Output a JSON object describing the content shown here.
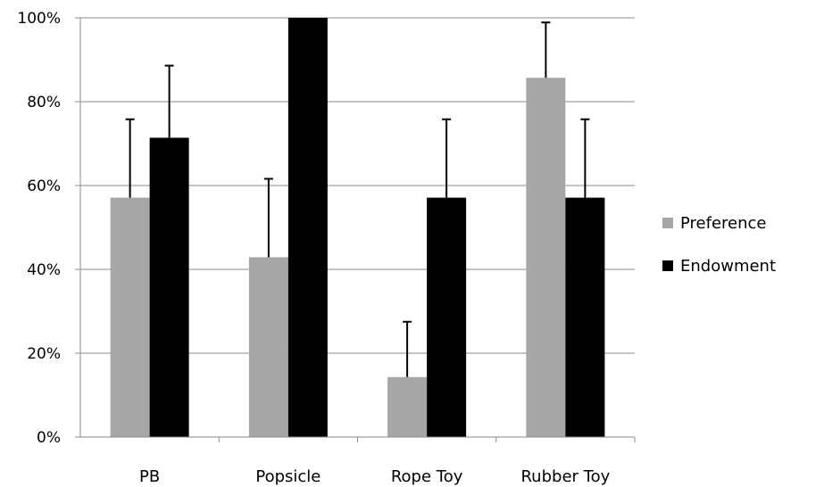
{
  "chart_data": {
    "type": "bar",
    "categories": [
      "PB",
      "Popsicle",
      "Rope Toy",
      "Rubber Toy"
    ],
    "series": [
      {
        "name": "Preference",
        "color": "#a6a6a6",
        "values": [
          57.1,
          42.9,
          14.3,
          85.7
        ],
        "error_upper": [
          18.7,
          18.7,
          13.2,
          13.2
        ]
      },
      {
        "name": "Endowment",
        "color": "#000000",
        "values": [
          71.4,
          100,
          57.1,
          57.1
        ],
        "error_upper": [
          17.2,
          0,
          18.7,
          18.7
        ]
      }
    ],
    "ylim": [
      0,
      100
    ],
    "yticks": [
      0,
      20,
      40,
      60,
      80,
      100
    ],
    "ytick_labels": [
      "0%",
      "20%",
      "40%",
      "60%",
      "80%",
      "100%"
    ],
    "title": "",
    "xlabel": "",
    "ylabel": "",
    "grid": true,
    "legend_position": "right"
  }
}
